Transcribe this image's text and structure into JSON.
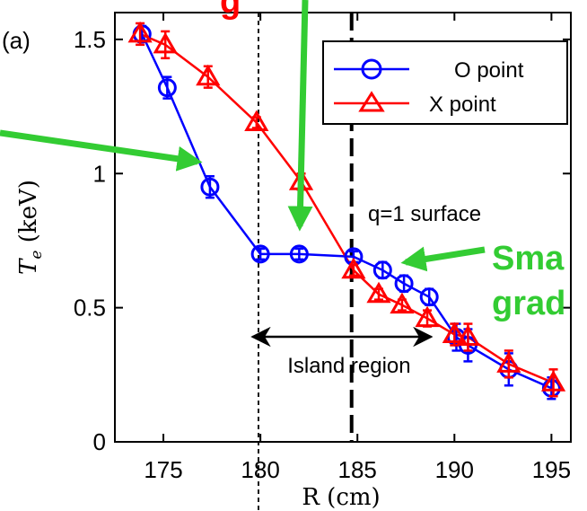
{
  "chart_data": {
    "type": "line",
    "panel_label": "(a)",
    "xlabel": "R (cm)",
    "ylabel": "T_e (keV)",
    "xlim": [
      172.5,
      196
    ],
    "ylim": [
      0,
      1.6
    ],
    "xticks": [
      "175",
      "180",
      "185",
      "190",
      "195"
    ],
    "yticks": [
      "0",
      "0.5",
      "1",
      "1.5"
    ],
    "legend_position": "top-right",
    "series": [
      {
        "name": "O point",
        "color": "#0000ff",
        "marker": "circle",
        "x": [
          173.9,
          175.2,
          177.4,
          180.0,
          182.0,
          184.8,
          186.3,
          187.4,
          188.7,
          190.1,
          190.7,
          192.8,
          195.0
        ],
        "y": [
          1.52,
          1.32,
          0.95,
          0.7,
          0.7,
          0.69,
          0.64,
          0.59,
          0.54,
          0.39,
          0.36,
          0.27,
          0.2
        ],
        "err": [
          0.03,
          0.04,
          0.04,
          0.02,
          0.02,
          0.02,
          0.03,
          0.03,
          0.03,
          0.05,
          0.06,
          0.06,
          0.04
        ]
      },
      {
        "name": "X point",
        "color": "#ff0000",
        "marker": "triangle",
        "x": [
          173.8,
          175.1,
          177.3,
          179.8,
          182.1,
          184.8,
          186.1,
          187.3,
          188.6,
          190.0,
          190.7,
          192.8,
          195.1
        ],
        "y": [
          1.52,
          1.48,
          1.36,
          1.19,
          0.97,
          0.64,
          0.55,
          0.51,
          0.46,
          0.4,
          0.39,
          0.29,
          0.22
        ],
        "err": [
          0.04,
          0.05,
          0.04,
          0.02,
          0.03,
          0.02,
          0.02,
          0.02,
          0.03,
          0.04,
          0.05,
          0.05,
          0.05
        ]
      }
    ],
    "vlines": [
      {
        "x": 179.9,
        "style": "dotted"
      },
      {
        "x": 184.7,
        "style": "dashed"
      }
    ],
    "annotations": {
      "q_surface": "q=1 surface",
      "island": "Island region",
      "island_range": [
        179.6,
        188.8
      ],
      "island_y": 0.79,
      "partial_top": "g",
      "partial_right_1": "Sma",
      "partial_right_2": "grad"
    },
    "arrow_color": "#33cc33"
  }
}
